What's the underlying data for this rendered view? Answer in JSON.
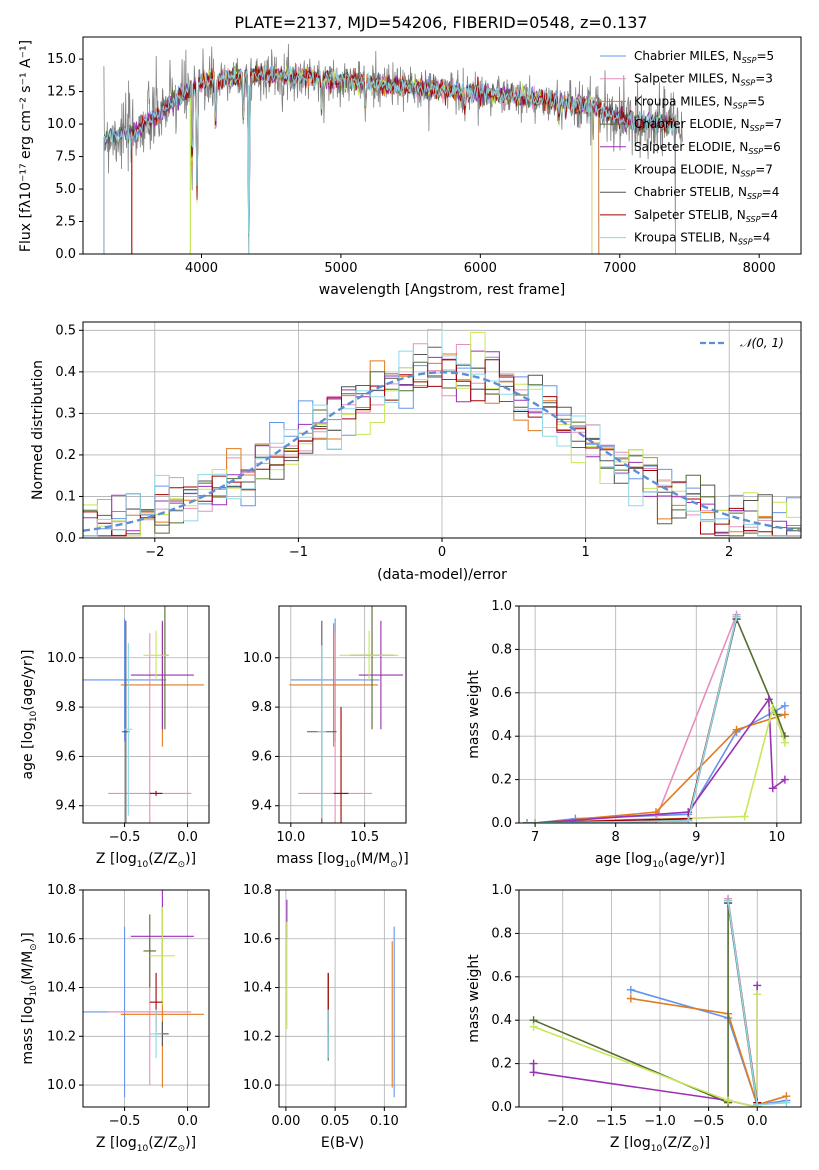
{
  "colors": [
    "#6495ed",
    "#e88fbf",
    "#e07b20",
    "#556b2f",
    "#9b30b5",
    "#c6e85a",
    "#555555",
    "#a00000",
    "#8ed8e8"
  ],
  "chart_data": [
    {
      "id": "spectrum",
      "type": "line",
      "title": "PLATE=2137, MJD=54206, FIBERID=0548, z=0.137",
      "xlabel": "wavelength [Angstrom, rest frame]",
      "ylabel": "Flux [f$_{\\lambda}$10$^{-17}$ erg cm$^{-2}$ s$^{-1}$ A$^{-1}$]",
      "ylabel_display": "Flux [fλ10⁻¹⁷ erg cm⁻² s⁻¹ A⁻¹]",
      "xlim": [
        3150,
        8300
      ],
      "ylim": [
        0,
        16.7
      ],
      "xticks": [
        4000,
        5000,
        6000,
        7000,
        8000
      ],
      "yticks": [
        0.0,
        2.5,
        5.0,
        7.5,
        10.0,
        12.5,
        15.0
      ],
      "legend_position": "upper right",
      "series": [
        {
          "name": "Chabrier MILES, N$_{SSP}$=5",
          "display": "Chabrier MILES, N",
          "sub": "SSP",
          "tail": "=5"
        },
        {
          "name": "Salpeter MILES, N$_{SSP}$=3",
          "display": "Salpeter MILES, N",
          "sub": "SSP",
          "tail": "=3"
        },
        {
          "name": "Kroupa MILES, N$_{SSP}$=5",
          "display": "Kroupa MILES, N",
          "sub": "SSP",
          "tail": "=5"
        },
        {
          "name": "Chabrier ELODIE, N$_{SSP}$=7",
          "display": "Chabrier ELODIE, N",
          "sub": "SSP",
          "tail": "=7"
        },
        {
          "name": "Salpeter ELODIE, N$_{SSP}$=6",
          "display": "Salpeter ELODIE, N",
          "sub": "SSP",
          "tail": "=6"
        },
        {
          "name": "Kroupa ELODIE, N$_{SSP}$=7",
          "display": "Kroupa ELODIE, N",
          "sub": "SSP",
          "tail": "=7"
        },
        {
          "name": "Chabrier STELIB, N$_{SSP}$=4",
          "display": "Chabrier STELIB, N",
          "sub": "SSP",
          "tail": "=4"
        },
        {
          "name": "Salpeter STELIB, N$_{SSP}$=4",
          "display": "Salpeter STELIB, N",
          "sub": "SSP",
          "tail": "=4"
        },
        {
          "name": "Kroupa STELIB, N$_{SSP}$=4",
          "display": "Kroupa STELIB, N",
          "sub": "SSP",
          "tail": "=4"
        }
      ],
      "continuum_points": [
        [
          3300,
          9.0
        ],
        [
          3500,
          9.3
        ],
        [
          3700,
          10.8
        ],
        [
          3850,
          12.2
        ],
        [
          4000,
          13.3
        ],
        [
          4200,
          13.6
        ],
        [
          4500,
          13.8
        ],
        [
          5000,
          13.4
        ],
        [
          5500,
          12.8
        ],
        [
          6000,
          12.4
        ],
        [
          6500,
          11.8
        ],
        [
          6800,
          11.3
        ],
        [
          7000,
          10.4
        ],
        [
          7200,
          10.1
        ],
        [
          7400,
          10.0
        ]
      ],
      "absorption_features": [
        [
          3933,
          6.5
        ],
        [
          3968,
          4.5
        ],
        [
          4102,
          9.5
        ],
        [
          4300,
          10.5
        ],
        [
          4340,
          0.0
        ],
        [
          4861,
          11.0
        ],
        [
          5175,
          11.0
        ],
        [
          5890,
          11.2
        ],
        [
          6563,
          10.5
        ]
      ],
      "model_edge_drops": [
        [
          3500,
          0.0
        ],
        [
          3920,
          0.0
        ],
        [
          4340,
          0.0
        ],
        [
          6800,
          0.0
        ],
        [
          6850,
          0.0
        ],
        [
          7400,
          0.0
        ]
      ]
    },
    {
      "id": "residuals",
      "type": "histogram",
      "xlabel": "(data-model)/error",
      "ylabel": "Normed distribution",
      "xlim": [
        -2.5,
        2.5
      ],
      "ylim": [
        0,
        0.52
      ],
      "xticks": [
        -2,
        -1,
        0,
        1,
        2
      ],
      "yticks": [
        0.0,
        0.1,
        0.2,
        0.3,
        0.4,
        0.5
      ],
      "bin_width": 0.1,
      "legend": "$\\mathcal{N}(0,1)$",
      "legend_display": "𝒩(0, 1)",
      "legend_position": "upper right",
      "reference_curve": "normal(0,1), dashed"
    },
    {
      "id": "age-vs-Z",
      "type": "errorbar",
      "xlabel": "Z [log$_{10}$(Z/Z$_\\odot$)]",
      "xlabel_parts": [
        "Z [log",
        "10",
        "(Z/Z",
        "⊙",
        ")]"
      ],
      "ylabel_parts": [
        "age  [log",
        "10",
        "(age/yr)]"
      ],
      "xlim": [
        -0.83,
        0.17
      ],
      "ylim": [
        9.33,
        10.21
      ],
      "xticks": [
        -0.5,
        0.0
      ],
      "yticks": [
        9.4,
        9.6,
        9.8,
        10.0
      ],
      "points": [
        {
          "x": -0.5,
          "xerr": 0.33,
          "y": 9.91,
          "yerr": 0.25
        },
        {
          "x": -0.3,
          "xerr": 0.33,
          "y": 9.45,
          "yerr": 0.65
        },
        {
          "x": -0.2,
          "xerr": 0.33,
          "y": 9.89,
          "yerr": 0.25
        },
        {
          "x": -0.18,
          "xerr": 0.03,
          "y": 10.01,
          "yerr": 0.3
        },
        {
          "x": -0.2,
          "xerr": 0.25,
          "y": 9.93,
          "yerr": 0.22
        },
        {
          "x": -0.25,
          "xerr": 0.1,
          "y": 10.01,
          "yerr": 0.1
        },
        {
          "x": -0.49,
          "xerr": 0.03,
          "y": 9.7,
          "yerr": 0.45
        },
        {
          "x": -0.25,
          "xerr": 0.05,
          "y": 9.45,
          "yerr": 0.01
        },
        {
          "x": -0.47,
          "xerr": 0.03,
          "y": 9.71,
          "yerr": 0.35
        }
      ]
    },
    {
      "id": "age-vs-mass",
      "type": "errorbar",
      "xlabel_parts": [
        "mass [log",
        "10",
        "(M/M",
        "⊙",
        ")]"
      ],
      "xlim": [
        9.92,
        10.78
      ],
      "ylim": [
        9.33,
        10.21
      ],
      "xticks": [
        10.0,
        10.5
      ],
      "yticks": [
        9.4,
        9.6,
        9.8,
        10.0
      ],
      "points": [
        {
          "x": 10.3,
          "xerr": 0.3,
          "y": 9.91,
          "yerr": 0.25
        },
        {
          "x": 10.3,
          "xerr": 0.25,
          "y": 9.45,
          "yerr": 0.65
        },
        {
          "x": 10.29,
          "xerr": 0.3,
          "y": 9.89,
          "yerr": 0.25
        },
        {
          "x": 10.55,
          "xerr": 0.15,
          "y": 10.01,
          "yerr": 0.3
        },
        {
          "x": 10.61,
          "xerr": 0.15,
          "y": 9.93,
          "yerr": 0.22
        },
        {
          "x": 10.53,
          "xerr": 0.2,
          "y": 10.01,
          "yerr": 0.1
        },
        {
          "x": 10.21,
          "xerr": 0.1,
          "y": 9.7,
          "yerr": 0.45
        },
        {
          "x": 10.34,
          "xerr": 0.05,
          "y": 9.45,
          "yerr": 0.35
        },
        {
          "x": 10.21,
          "xerr": 0.03,
          "y": 9.7,
          "yerr": 0.35
        }
      ]
    },
    {
      "id": "mw-vs-age",
      "type": "line",
      "ylabel": "mass weight",
      "xlabel_parts": [
        "age  [log",
        "10",
        "(age/yr)]"
      ],
      "xlim": [
        6.8,
        10.3
      ],
      "ylim": [
        0,
        1.0
      ],
      "xticks": [
        7,
        8,
        9,
        10
      ],
      "yticks": [
        0.0,
        0.2,
        0.4,
        0.6,
        0.8,
        1.0
      ],
      "series": [
        [
          [
            7.0,
            0.0
          ],
          [
            7.5,
            0.02
          ],
          [
            8.9,
            0.04
          ],
          [
            9.5,
            0.42
          ],
          [
            10.1,
            0.54
          ]
        ],
        [
          [
            7.0,
            0.0
          ],
          [
            8.5,
            0.02
          ],
          [
            9.5,
            0.96
          ]
        ],
        [
          [
            7.0,
            0.0
          ],
          [
            8.5,
            0.05
          ],
          [
            9.5,
            0.43
          ],
          [
            10.1,
            0.5
          ]
        ],
        [
          [
            7.0,
            0.0
          ],
          [
            8.9,
            0.02
          ],
          [
            9.5,
            0.94
          ],
          [
            10.0,
            0.5
          ],
          [
            10.1,
            0.4
          ]
        ],
        [
          [
            7.0,
            0.0
          ],
          [
            8.9,
            0.05
          ],
          [
            9.9,
            0.57
          ],
          [
            9.95,
            0.16
          ],
          [
            10.1,
            0.2
          ]
        ],
        [
          [
            7.0,
            0.0
          ],
          [
            9.6,
            0.03
          ],
          [
            9.95,
            0.53
          ],
          [
            10.1,
            0.37
          ]
        ],
        [
          [
            6.9,
            0.0
          ],
          [
            8.9,
            0.01
          ],
          [
            9.5,
            0.94
          ]
        ],
        [
          [
            6.9,
            0.0
          ],
          [
            8.9,
            0.02
          ],
          [
            9.5,
            0.95
          ]
        ],
        [
          [
            6.9,
            0.0
          ],
          [
            8.9,
            0.01
          ],
          [
            9.5,
            0.95
          ]
        ]
      ]
    },
    {
      "id": "mass-vs-Z",
      "type": "errorbar",
      "xlabel_parts": [
        "Z [log",
        "10",
        "(Z/Z",
        "⊙",
        ")]"
      ],
      "ylabel_parts": [
        "mass [log",
        "10",
        "(M/M",
        "⊙",
        ")]"
      ],
      "xlim": [
        -0.83,
        0.17
      ],
      "ylim": [
        9.91,
        10.8
      ],
      "xticks": [
        -0.5,
        0.0
      ],
      "yticks": [
        10.0,
        10.2,
        10.4,
        10.6,
        10.8
      ],
      "points": [
        {
          "x": -0.5,
          "xerr": 0.33,
          "y": 10.3,
          "yerr": 0.35
        },
        {
          "x": -0.3,
          "xerr": 0.33,
          "y": 10.3,
          "yerr": 0.3
        },
        {
          "x": -0.2,
          "xerr": 0.33,
          "y": 10.29,
          "yerr": 0.3
        },
        {
          "x": -0.3,
          "xerr": 0.05,
          "y": 10.55,
          "yerr": 0.15
        },
        {
          "x": -0.2,
          "xerr": 0.25,
          "y": 10.61,
          "yerr": 0.2
        },
        {
          "x": -0.2,
          "xerr": 0.1,
          "y": 10.53,
          "yerr": 0.2
        },
        {
          "x": -0.2,
          "xerr": 0.05,
          "y": 10.21,
          "yerr": 0.05
        },
        {
          "x": -0.25,
          "xerr": 0.05,
          "y": 10.34,
          "yerr": 0.12
        },
        {
          "x": -0.25,
          "xerr": 0.05,
          "y": 10.21,
          "yerr": 0.1
        }
      ]
    },
    {
      "id": "mass-vs-ebv",
      "type": "errorbar",
      "xlabel": "E(B-V)",
      "xlim": [
        -0.007,
        0.122
      ],
      "ylim": [
        9.91,
        10.8
      ],
      "xticks": [
        0.0,
        0.05,
        0.1
      ],
      "yticks": [
        10.0,
        10.2,
        10.4,
        10.6,
        10.8
      ],
      "points": [
        {
          "x": 0.11,
          "xerr": 0,
          "y": 10.3,
          "yerr": 0.35
        },
        {
          "x": 0.043,
          "xerr": 0,
          "y": 10.3,
          "yerr": 0.15
        },
        {
          "x": 0.108,
          "xerr": 0,
          "y": 10.29,
          "yerr": 0.3
        },
        {
          "x": 0.043,
          "xerr": 0,
          "y": 10.28,
          "yerr": 0.18
        },
        {
          "x": 0.001,
          "xerr": 0,
          "y": 10.68,
          "yerr": 0.08
        },
        {
          "x": 0.001,
          "xerr": 0,
          "y": 10.45,
          "yerr": 0.22
        },
        {
          "x": 0.043,
          "xerr": 0,
          "y": 10.21,
          "yerr": 0.1
        },
        {
          "x": 0.043,
          "xerr": 0,
          "y": 10.34,
          "yerr": 0.12
        },
        {
          "x": 0.043,
          "xerr": 0,
          "y": 10.21,
          "yerr": 0.1
        }
      ]
    },
    {
      "id": "mw-vs-Z",
      "type": "line",
      "ylabel": "mass weight",
      "xlabel_parts": [
        "Z [log",
        "10",
        "(Z/Z",
        "⊙",
        ")]"
      ],
      "xlim": [
        -2.45,
        0.45
      ],
      "ylim": [
        0,
        1.0
      ],
      "xticks": [
        -2.0,
        -1.5,
        -1.0,
        -0.5,
        0.0
      ],
      "yticks": [
        0.0,
        0.2,
        0.4,
        0.6,
        0.8,
        1.0
      ],
      "series": [
        [
          [
            -1.3,
            0.54
          ],
          [
            -0.3,
            0.41
          ],
          [
            0.0,
            0.01
          ],
          [
            0.3,
            0.03
          ]
        ],
        [
          [
            -0.3,
            0.96
          ],
          [
            0.0,
            0.02
          ]
        ],
        [
          [
            -1.3,
            0.5
          ],
          [
            -0.3,
            0.43
          ],
          [
            0.0,
            0.01
          ],
          [
            0.3,
            0.05
          ]
        ],
        [
          [
            -2.3,
            0.4
          ],
          [
            -0.3,
            0.02
          ],
          [
            -0.3,
            0.94
          ],
          [
            0.0,
            0.0
          ]
        ],
        [
          [
            -2.3,
            0.2
          ],
          [
            -2.3,
            0.16
          ],
          [
            -0.3,
            0.03
          ],
          [
            0.0,
            0.0
          ],
          [
            0.0,
            0.56
          ]
        ],
        [
          [
            -2.3,
            0.37
          ],
          [
            -0.3,
            0.03
          ],
          [
            0.0,
            0.0
          ],
          [
            0.0,
            0.52
          ]
        ],
        [
          [
            -0.3,
            0.94
          ],
          [
            0.0,
            0.01
          ]
        ],
        [
          [
            -0.3,
            0.95
          ],
          [
            0.0,
            0.02
          ]
        ],
        [
          [
            -0.3,
            0.95
          ],
          [
            0.0,
            0.01
          ],
          [
            0.3,
            0.02
          ]
        ]
      ]
    }
  ]
}
